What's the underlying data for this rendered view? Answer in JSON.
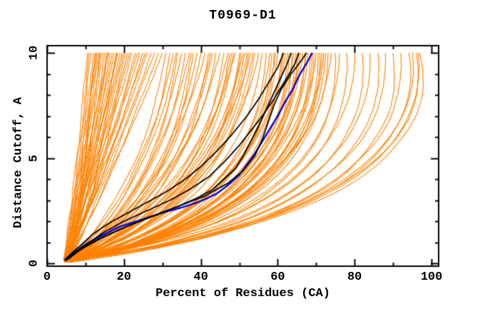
{
  "title": "T0969-D1",
  "colors": {
    "background": "#FFFFFF",
    "axis": "#000000",
    "orange": "#FF8000",
    "blue": "#0000EE",
    "black": "#000000"
  },
  "axes": {
    "x_tick_labels": [
      "0",
      "20",
      "40",
      "60",
      "80",
      "100"
    ],
    "y_tick_labels": [
      "0",
      "5",
      "10"
    ]
  },
  "chart_data": {
    "type": "line",
    "title": "T0969-D1",
    "xlabel": "Percent of Residues (CA)",
    "ylabel": "Distance Cutoff, A",
    "xlim": [
      0,
      101.9
    ],
    "ylim": [
      -0.15,
      10.35
    ],
    "x_major_ticks": [
      0,
      20,
      40,
      60,
      80,
      100
    ],
    "x_minor_step": 10,
    "y_major_ticks": [
      0,
      5,
      10
    ],
    "y_minor_step": 1,
    "grid": false,
    "legend": false,
    "jitter_seed": 11,
    "series": [
      {
        "name": "predicted-models",
        "color_key": "orange",
        "line_width": 1.1,
        "curve_format": [
          "start_pct",
          "top_pct_at_10A",
          "ctrl_frac",
          "ctrl_dist"
        ],
        "top_distance": 10,
        "curves": [
          [
            4.5,
            10.5,
            0.5,
            4.2
          ],
          [
            5,
            11,
            0.55,
            4.8
          ],
          [
            4.2,
            11.5,
            0.48,
            4.0
          ],
          [
            5.5,
            12,
            0.52,
            4.5
          ],
          [
            6,
            12.5,
            0.58,
            5.0
          ],
          [
            4.8,
            13,
            0.5,
            4.3
          ],
          [
            5.2,
            13.5,
            0.55,
            4.7
          ],
          [
            4.4,
            14,
            0.47,
            3.9
          ],
          [
            5.8,
            14.5,
            0.53,
            4.6
          ],
          [
            6.2,
            15,
            0.57,
            5.1
          ],
          [
            4.6,
            15.5,
            0.5,
            4.2
          ],
          [
            5.1,
            16,
            0.54,
            4.8
          ],
          [
            5.9,
            16.5,
            0.49,
            4.1
          ],
          [
            4.3,
            17,
            0.52,
            4.4
          ],
          [
            5.4,
            17.5,
            0.56,
            5.0
          ],
          [
            6.1,
            18,
            0.5,
            4.3
          ],
          [
            4.7,
            18.5,
            0.53,
            4.6
          ],
          [
            5.3,
            19,
            0.48,
            4.0
          ],
          [
            5.7,
            19.5,
            0.55,
            4.9
          ],
          [
            4.9,
            20,
            0.51,
            4.4
          ],
          [
            6.3,
            21,
            0.56,
            5.0
          ],
          [
            4.5,
            21.5,
            0.5,
            4.2
          ],
          [
            5.6,
            22,
            0.53,
            4.7
          ],
          [
            5.0,
            23,
            0.49,
            4.1
          ],
          [
            6.0,
            23.5,
            0.55,
            4.9
          ],
          [
            4.8,
            24,
            0.52,
            4.5
          ],
          [
            5.5,
            25,
            0.5,
            4.2
          ],
          [
            5.2,
            26,
            0.54,
            4.8
          ],
          [
            6.2,
            27,
            0.51,
            4.4
          ],
          [
            4.6,
            28,
            0.55,
            5.0
          ],
          [
            5.8,
            29,
            0.52,
            4.5
          ],
          [
            5.1,
            30,
            0.5,
            4.2
          ],
          [
            4.4,
            12.8,
            0.5,
            4.5
          ],
          [
            5.9,
            15.8,
            0.53,
            4.6
          ],
          [
            5.3,
            20.5,
            0.5,
            4.3
          ],
          [
            4.7,
            25.5,
            0.52,
            4.6
          ],
          [
            6.1,
            13.8,
            0.55,
            4.9
          ],
          [
            5.0,
            18.2,
            0.5,
            4.2
          ],
          [
            5.5,
            31,
            0.72,
            3.2
          ],
          [
            4.8,
            32,
            0.78,
            2.9
          ],
          [
            6.0,
            33,
            0.7,
            3.4
          ],
          [
            5.2,
            34,
            0.82,
            2.7
          ],
          [
            5.8,
            35,
            0.75,
            3.1
          ],
          [
            4.5,
            36,
            0.8,
            2.8
          ],
          [
            6.2,
            37,
            0.73,
            3.3
          ],
          [
            5.0,
            38,
            0.85,
            2.6
          ],
          [
            5.6,
            39,
            0.77,
            3.0
          ],
          [
            4.9,
            40,
            0.8,
            2.7
          ],
          [
            6.1,
            41,
            0.74,
            3.2
          ],
          [
            5.3,
            42,
            0.86,
            2.5
          ],
          [
            5.7,
            43,
            0.78,
            2.9
          ],
          [
            4.6,
            44,
            0.82,
            2.7
          ],
          [
            6.3,
            45,
            0.75,
            3.1
          ],
          [
            5.1,
            46,
            0.88,
            2.4
          ],
          [
            5.9,
            47,
            0.8,
            2.8
          ],
          [
            4.7,
            48,
            0.84,
            2.6
          ],
          [
            6.0,
            49,
            0.77,
            3.0
          ],
          [
            5.4,
            50,
            0.9,
            2.3
          ],
          [
            5.2,
            51,
            0.82,
            2.7
          ],
          [
            5.8,
            52,
            0.86,
            2.5
          ],
          [
            4.8,
            53,
            0.8,
            2.8
          ],
          [
            6.2,
            54,
            0.88,
            2.4
          ],
          [
            5.5,
            55,
            0.84,
            2.6
          ],
          [
            5.0,
            33.5,
            0.76,
            3.0
          ],
          [
            5.6,
            37.5,
            0.83,
            2.7
          ],
          [
            4.9,
            42.5,
            0.79,
            2.9
          ],
          [
            6.1,
            47.5,
            0.85,
            2.5
          ],
          [
            5.3,
            52.5,
            0.87,
            2.4
          ],
          [
            5.2,
            48.5,
            0.86,
            2.5
          ],
          [
            5.7,
            50.5,
            0.88,
            2.4
          ],
          [
            4.9,
            51.5,
            0.84,
            2.6
          ],
          [
            6.0,
            53.5,
            0.87,
            2.4
          ],
          [
            5.4,
            56,
            0.9,
            2.4
          ],
          [
            4.9,
            57,
            0.95,
            2.2
          ],
          [
            6.0,
            58,
            0.92,
            2.3
          ],
          [
            5.2,
            59,
            0.97,
            2.1
          ],
          [
            5.7,
            60,
            0.93,
            2.4
          ],
          [
            4.6,
            61,
            0.96,
            2.0
          ],
          [
            6.2,
            62,
            0.9,
            2.5
          ],
          [
            5.1,
            63,
            0.98,
            2.1
          ],
          [
            5.8,
            64,
            0.94,
            2.3
          ],
          [
            4.8,
            65,
            1.0,
            2.0
          ],
          [
            6.1,
            66,
            0.92,
            2.4
          ],
          [
            5.3,
            67,
            0.99,
            2.1
          ],
          [
            5.6,
            68,
            0.95,
            2.2
          ],
          [
            4.7,
            69,
            1.0,
            2.0
          ],
          [
            6.3,
            70,
            0.93,
            2.4
          ],
          [
            5.0,
            71,
            1.02,
            2.0
          ],
          [
            5.9,
            72,
            0.96,
            2.2
          ],
          [
            4.5,
            73,
            1.0,
            2.1
          ],
          [
            6.0,
            74,
            0.94,
            2.3
          ],
          [
            5.5,
            75,
            1.03,
            1.9
          ],
          [
            5.2,
            58.5,
            0.96,
            2.2
          ],
          [
            5.7,
            61.5,
            0.91,
            2.5
          ],
          [
            4.9,
            64.5,
            1.0,
            2.0
          ],
          [
            6.1,
            67.5,
            0.95,
            2.2
          ],
          [
            5.4,
            70.5,
            1.01,
            2.0
          ],
          [
            5.0,
            72.5,
            0.97,
            2.1
          ],
          [
            5.8,
            65.5,
            0.93,
            2.3
          ],
          [
            4.8,
            62.5,
            0.98,
            2.1
          ],
          [
            6.2,
            59.5,
            0.9,
            2.5
          ],
          [
            5.3,
            68.5,
            1.0,
            2.0
          ],
          [
            5.6,
            71.5,
            0.96,
            2.2
          ],
          [
            4.7,
            63.5,
            1.02,
            1.9
          ],
          [
            5.9,
            66.5,
            0.94,
            2.3
          ],
          [
            5.1,
            69.5,
            0.99,
            2.1
          ],
          [
            5.5,
            76,
            1.0,
            2.2
          ],
          [
            4.8,
            78,
            1.04,
            2.1
          ],
          [
            6.0,
            80,
            1.0,
            2.3
          ],
          [
            5.2,
            82,
            1.05,
            2.0
          ],
          [
            5.7,
            84,
            1.02,
            2.2
          ],
          [
            4.9,
            86,
            1.06,
            2.1
          ],
          [
            6.1,
            88,
            1.03,
            2.3
          ],
          [
            5.3,
            90,
            1.07,
            2.0
          ],
          [
            5.6,
            92,
            1.04,
            2.2
          ],
          [
            5.0,
            94,
            1.08,
            2.3
          ],
          [
            5.8,
            95,
            1.05,
            2.4
          ],
          [
            4.7,
            96,
            1.08,
            2.5
          ],
          [
            6.2,
            96.5,
            1.06,
            2.4
          ],
          [
            5.4,
            97,
            1.1,
            2.5
          ]
        ]
      },
      {
        "name": "highlight-model-blue",
        "color_key": "blue",
        "line_width": 2.4,
        "points_format": [
          "pct",
          "dist"
        ],
        "curves": [
          [
            [
              4.8,
              0.15
            ],
            [
              7,
              0.5
            ],
            [
              10,
              0.9
            ],
            [
              14,
              1.3
            ],
            [
              19,
              1.75
            ],
            [
              25,
              2.1
            ],
            [
              30,
              2.4
            ],
            [
              35,
              2.65
            ],
            [
              40,
              2.95
            ],
            [
              44,
              3.3
            ],
            [
              47,
              3.7
            ],
            [
              50,
              4.2
            ],
            [
              52,
              4.7
            ],
            [
              54,
              5.2
            ],
            [
              56,
              5.8
            ],
            [
              58,
              6.4
            ],
            [
              60,
              7.0
            ],
            [
              62,
              7.7
            ],
            [
              64,
              8.3
            ],
            [
              65.5,
              8.9
            ],
            [
              67.5,
              9.5
            ],
            [
              69,
              10.0
            ]
          ]
        ]
      },
      {
        "name": "highlight-models-black",
        "color_key": "black",
        "line_width": 1.8,
        "points_format": [
          "pct",
          "dist"
        ],
        "curves": [
          [
            [
              4.5,
              0.15
            ],
            [
              6.5,
              0.5
            ],
            [
              9,
              0.9
            ],
            [
              12,
              1.4
            ],
            [
              16,
              1.9
            ],
            [
              21,
              2.4
            ],
            [
              26,
              2.9
            ],
            [
              31,
              3.4
            ],
            [
              36,
              4.0
            ],
            [
              40,
              4.6
            ],
            [
              44,
              5.3
            ],
            [
              48,
              6.1
            ],
            [
              52,
              7.0
            ],
            [
              55,
              7.8
            ],
            [
              58,
              8.7
            ],
            [
              60,
              9.3
            ],
            [
              61.5,
              10.0
            ]
          ],
          [
            [
              5,
              0.15
            ],
            [
              7.5,
              0.55
            ],
            [
              11,
              1.0
            ],
            [
              15,
              1.5
            ],
            [
              20,
              2.0
            ],
            [
              26,
              2.5
            ],
            [
              32,
              3.0
            ],
            [
              37,
              3.5
            ],
            [
              42,
              4.1
            ],
            [
              46,
              4.8
            ],
            [
              50,
              5.6
            ],
            [
              53,
              6.3
            ],
            [
              56,
              7.0
            ],
            [
              59,
              7.8
            ],
            [
              61,
              8.4
            ],
            [
              63,
              9.0
            ],
            [
              64.5,
              9.5
            ],
            [
              65.5,
              10.0
            ]
          ],
          [
            [
              5.5,
              0.2
            ],
            [
              9,
              0.7
            ],
            [
              14,
              1.2
            ],
            [
              20,
              1.7
            ],
            [
              27,
              2.2
            ],
            [
              34,
              2.7
            ],
            [
              41,
              3.2
            ],
            [
              47,
              3.8
            ],
            [
              51,
              4.4
            ],
            [
              54,
              5.1
            ],
            [
              56,
              5.9
            ],
            [
              57.5,
              6.7
            ],
            [
              59,
              7.5
            ],
            [
              61,
              8.3
            ],
            [
              63.5,
              9.0
            ],
            [
              66,
              9.6
            ],
            [
              67.5,
              10.0
            ]
          ],
          [
            [
              4.8,
              0.12
            ],
            [
              7,
              0.45
            ],
            [
              10,
              0.8
            ],
            [
              14,
              1.2
            ],
            [
              19,
              1.6
            ],
            [
              24,
              2.0
            ],
            [
              29,
              2.35
            ],
            [
              34,
              2.7
            ],
            [
              39,
              3.1
            ],
            [
              43,
              3.5
            ],
            [
              46,
              4.0
            ],
            [
              49,
              4.5
            ],
            [
              51,
              5.1
            ],
            [
              53,
              5.8
            ],
            [
              55,
              6.5
            ],
            [
              57,
              7.3
            ],
            [
              59,
              8.1
            ],
            [
              61,
              8.9
            ],
            [
              62.5,
              9.5
            ],
            [
              63.5,
              10.0
            ]
          ]
        ]
      }
    ]
  }
}
